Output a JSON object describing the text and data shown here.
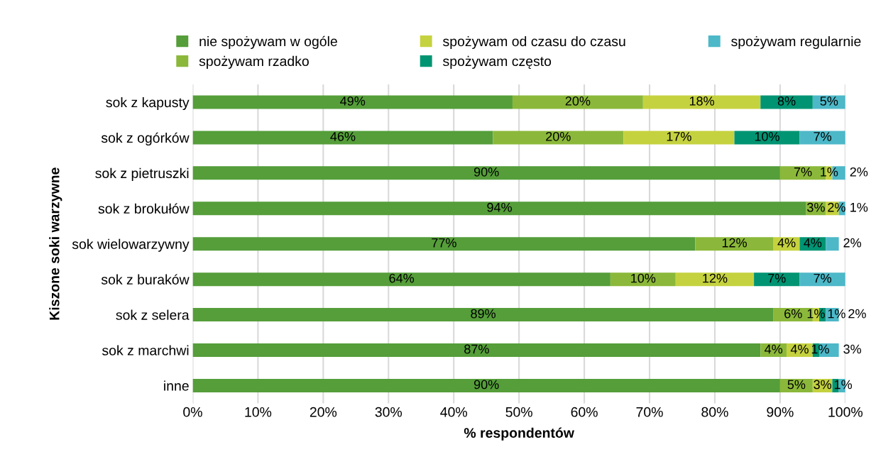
{
  "chart_data": {
    "type": "bar",
    "orientation": "horizontal",
    "stacked": true,
    "xlabel": "% respondentów",
    "ylabel": "Kiszone soki warzywne",
    "categories": [
      "sok z kapusty",
      "sok z ogórków",
      "sok z pietruszki",
      "sok z brokułów",
      "sok wielowarzywny",
      "sok z buraków",
      "sok z selera",
      "sok z marchwi",
      "inne"
    ],
    "series": [
      {
        "name": "nie spożywam w ogóle",
        "color": "#559e3a",
        "values": [
          49,
          46,
          90,
          94,
          77,
          64,
          89,
          87,
          90
        ],
        "value_labels": [
          "49%",
          "46%",
          "90%",
          "94%",
          "77%",
          "64%",
          "89%",
          "87%",
          "90%"
        ]
      },
      {
        "name": "spożywam rzadko",
        "color": "#8bb83a",
        "values": [
          20,
          20,
          7,
          3,
          12,
          10,
          6,
          4,
          5
        ],
        "value_labels": [
          "20%",
          "20%",
          "7%",
          "3%",
          "12%",
          "10%",
          "6%",
          "4%",
          "5%"
        ]
      },
      {
        "name": "spożywam od czasu do czasu",
        "color": "#c5d23f",
        "values": [
          18,
          17,
          1,
          2,
          4,
          12,
          1,
          4,
          3
        ],
        "value_labels": [
          "18%",
          "17%",
          "1%",
          "2%",
          "4%",
          "12%",
          "1%",
          "4%",
          "3%"
        ]
      },
      {
        "name": "spożywam często",
        "color": "#009473",
        "values": [
          8,
          10,
          0,
          0,
          4,
          7,
          1,
          1,
          1
        ],
        "value_labels": [
          "8%",
          "10%",
          null,
          null,
          "4%",
          "7%",
          "1%",
          "1%",
          "1%"
        ]
      },
      {
        "name": "spożywam regularnie",
        "color": "#4db8c8",
        "values": [
          5,
          7,
          2,
          1,
          2,
          7,
          2,
          3,
          1
        ],
        "value_labels": [
          "5%",
          "7%",
          "2%",
          "1%",
          "2%",
          "7%",
          "2%",
          "3%",
          null
        ]
      }
    ],
    "xlim": [
      0,
      100
    ],
    "xticks": [
      {
        "value": 0,
        "label": "0%"
      },
      {
        "value": 10,
        "label": "10%"
      },
      {
        "value": 20,
        "label": "20%"
      },
      {
        "value": 30,
        "label": "30%"
      },
      {
        "value": 40,
        "label": "40%"
      },
      {
        "value": 50,
        "label": "50%"
      },
      {
        "value": 60,
        "label": "60%"
      },
      {
        "value": 70,
        "label": "70%"
      },
      {
        "value": 80,
        "label": "80%"
      },
      {
        "value": 90,
        "label": "90%"
      },
      {
        "value": 100,
        "label": "100%"
      }
    ],
    "grid": "x",
    "legend": "top"
  }
}
